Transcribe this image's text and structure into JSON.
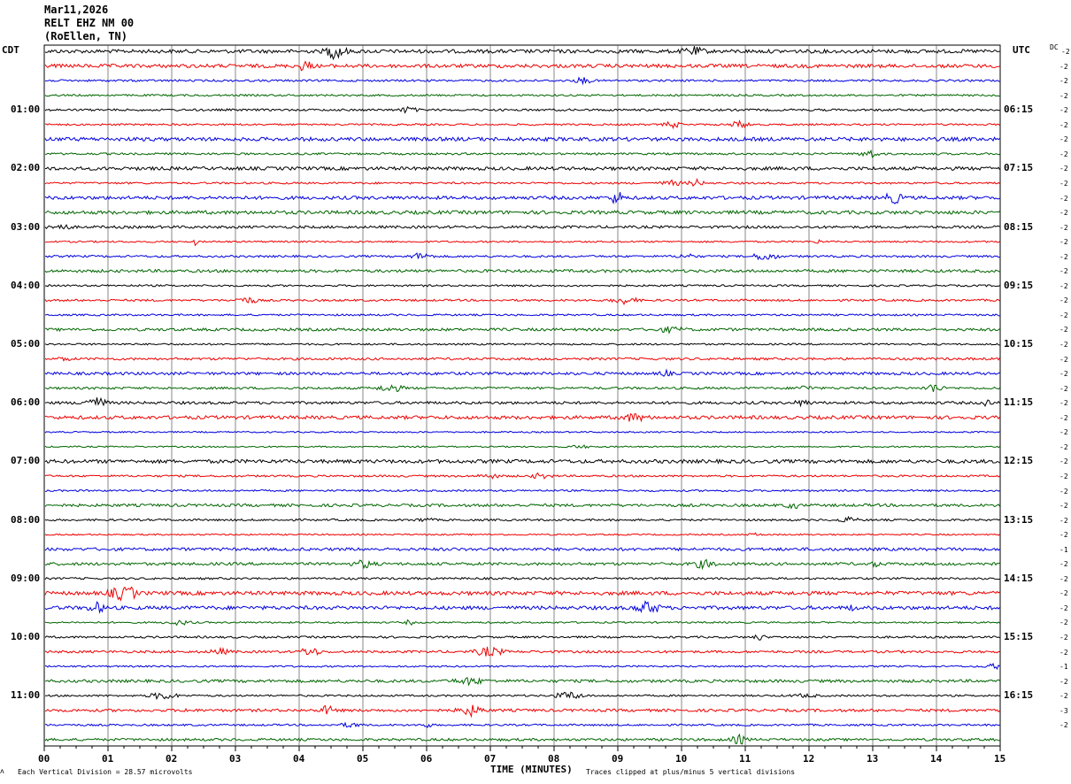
{
  "header": {
    "date": "Mar11,2026",
    "station": "RELT EHZ NM 00",
    "location": "(RoEllen, TN)"
  },
  "left_label": "CDT",
  "right_label": "UTC",
  "dc_label": "DC",
  "left_hours": [
    "01:00",
    "02:00",
    "03:00",
    "04:00",
    "05:00",
    "06:00",
    "07:00",
    "08:00",
    "09:00",
    "10:00",
    "11:00"
  ],
  "right_hours": [
    "06:15",
    "07:15",
    "08:15",
    "09:15",
    "10:15",
    "11:15",
    "12:15",
    "13:15",
    "14:15",
    "15:15",
    "16:15"
  ],
  "dc_values": [
    "-2",
    "-2",
    "-2",
    "-2",
    "-2",
    "-2",
    "-2",
    "-2",
    "-2",
    "-2",
    "-2",
    "-2",
    "-2",
    "-2",
    "-2",
    "-2",
    "-2",
    "-2",
    "-2",
    "-2",
    "-2",
    "-2",
    "-2",
    "-2",
    "-2",
    "-2",
    "-2",
    "-2",
    "-2",
    "-2",
    "-2",
    "-2",
    "-2",
    "-2",
    "-1",
    "-2",
    "-2",
    "-2",
    "-2",
    "-2",
    "-2",
    "-2",
    "-1",
    "-2",
    "-2",
    "-3",
    "-2"
  ],
  "x_ticks": [
    "00",
    "01",
    "02",
    "03",
    "04",
    "05",
    "06",
    "07",
    "08",
    "09",
    "10",
    "11",
    "12",
    "13",
    "14",
    "15"
  ],
  "x_axis_label": "TIME (MINUTES)",
  "footer_left": "Each Vertical Division =   28.57 microvolts",
  "footer_right": "Traces clipped at plus/minus 5 vertical divisions",
  "trace_colors": [
    "#000000",
    "#ee0000",
    "#0000dd",
    "#006600"
  ],
  "trace_count": 48
}
